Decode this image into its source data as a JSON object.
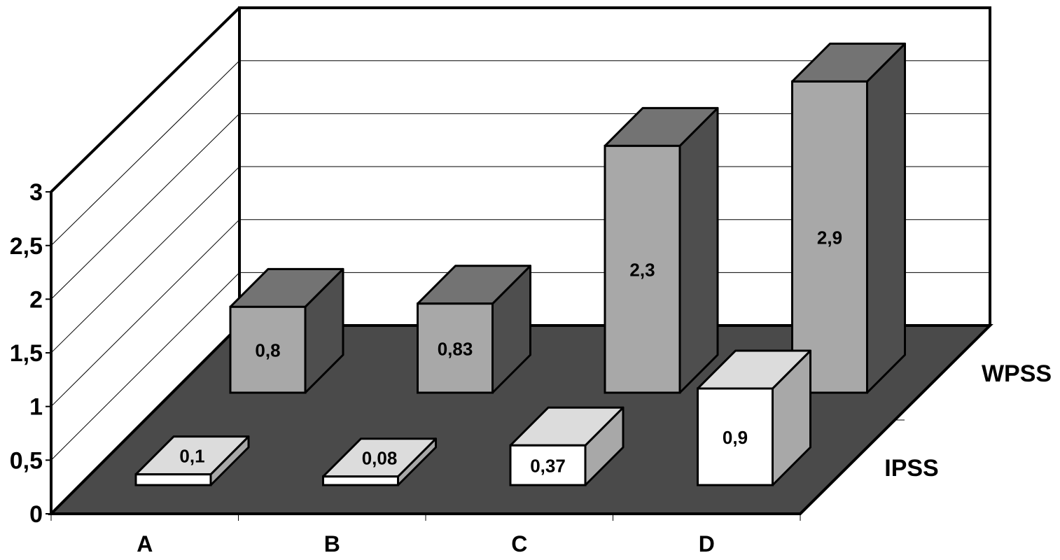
{
  "chart_data": {
    "type": "bar",
    "projection": "3d",
    "categories": [
      "A",
      "B",
      "C",
      "D"
    ],
    "series": [
      {
        "name": "WPSS",
        "values": [
          0.8,
          0.83,
          2.3,
          2.9
        ],
        "labels": [
          "0,8",
          "0,83",
          "2,3",
          "2,9"
        ]
      },
      {
        "name": "IPSS",
        "values": [
          0.1,
          0.08,
          0.37,
          0.9
        ],
        "labels": [
          "0,1",
          "0,08",
          "0,37",
          "0,9"
        ]
      }
    ],
    "y_ticks": [
      "0",
      "0,5",
      "1",
      "1,5",
      "2",
      "2,5",
      "3"
    ],
    "ylim": [
      0,
      3
    ],
    "grid": true,
    "legend": "right",
    "colors": {
      "floor": "#4a4a4a",
      "wpss_front": "#a8a8a8",
      "wpss_top": "#737373",
      "wpss_side": "#4e4e4e",
      "ipss_front": "#ffffff",
      "ipss_top": "#dcdcdc",
      "ipss_side": "#a8a8a8"
    }
  }
}
